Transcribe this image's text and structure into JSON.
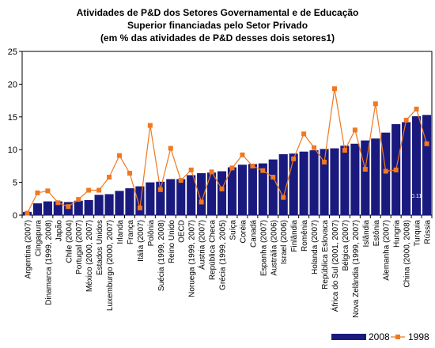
{
  "chart_data": {
    "type": "bar+line",
    "title_lines": [
      "Atividades de P&D dos Setores Governamental e de Educação",
      "Superior financiadas pelo Setor Privado",
      "(em % das atividades de P&D desses dois setores1)"
    ],
    "ylim": [
      0,
      25
    ],
    "yticks": [
      "0",
      "5",
      "10",
      "15",
      "20",
      "25"
    ],
    "categories": [
      "Argentina (2007)",
      "Cingapura",
      "Dinamarca (1999, 2008)",
      "Japão",
      "Chile (2004)",
      "Portugal (2007)",
      "México (2000, 2007)",
      "Estados Unidos",
      "Luxemburgo (2000, 2007)",
      "Irlanda",
      "França",
      "Itália (2007)",
      "Polônia",
      "Suécia (1999, 2008)",
      "Reino Unido",
      "OECD",
      "Noruega (1999, 2007)",
      "Áustria (2007)",
      "República Checa",
      "Grécia (1999, 2005)",
      "Suíça",
      "Coréia",
      "Canadá",
      "Espanha (2007)",
      "Austrália (2006)",
      "Israel (2006)",
      "Finlândia",
      "Romênia",
      "Holanda (2007)",
      "República Eslovaca",
      "África do Sul (2001, 2007)",
      "Bélgica (2007)",
      "Nova Zelândia (1999, 2007)",
      "Islândia",
      "Estônia",
      "Alemanha (2007)",
      "Hungria",
      "China (2000, 2008)",
      "Turquia",
      "Rússia"
    ],
    "series": [
      {
        "name": "2008",
        "type": "bar",
        "color": "#1a1a7e",
        "values": [
          0.5,
          1.8,
          2.1,
          2.1,
          2.0,
          2.2,
          2.3,
          3.1,
          3.2,
          3.7,
          4.1,
          4.4,
          5.0,
          5.1,
          5.5,
          5.5,
          6.1,
          6.4,
          6.5,
          6.7,
          7.3,
          7.7,
          7.8,
          7.9,
          8.5,
          9.3,
          9.4,
          9.7,
          9.9,
          10.1,
          10.2,
          10.6,
          10.9,
          11.4,
          11.7,
          12.6,
          13.9,
          14.2,
          15.1,
          15.3
        ]
      },
      {
        "name": "1998",
        "type": "line",
        "color": "#f07820",
        "values": [
          0.3,
          3.4,
          3.7,
          1.9,
          1.3,
          2.4,
          3.8,
          3.8,
          5.8,
          9.1,
          6.4,
          1.1,
          13.7,
          3.9,
          10.2,
          5.3,
          6.9,
          2.0,
          6.6,
          4.0,
          7.2,
          9.2,
          7.5,
          6.8,
          5.8,
          2.7,
          8.6,
          12.4,
          10.3,
          8.1,
          19.3,
          9.9,
          13.0,
          7.0,
          17.0,
          6.7,
          6.9,
          14.5,
          16.2,
          10.9
        ]
      }
    ],
    "bar_annotation": {
      "index": 38,
      "text": "0.11"
    },
    "legend_position": "bottom-right",
    "grid": false
  }
}
